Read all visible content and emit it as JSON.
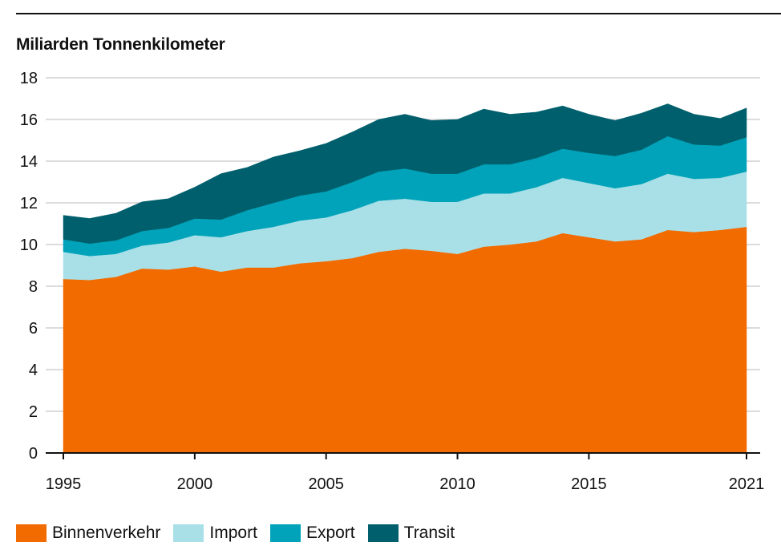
{
  "chart_data": {
    "type": "area",
    "stacked": true,
    "title": "",
    "ylabel": "Miliarden Tonnenkilometer",
    "xlabel": "",
    "x": [
      1995,
      1996,
      1997,
      1998,
      1999,
      2000,
      2001,
      2002,
      2003,
      2004,
      2005,
      2006,
      2007,
      2008,
      2009,
      2010,
      2011,
      2012,
      2013,
      2014,
      2015,
      2016,
      2017,
      2018,
      2019,
      2020,
      2021
    ],
    "xticks": [
      "1995",
      "2000",
      "2005",
      "2010",
      "2015",
      "2021"
    ],
    "xtick_values": [
      1995,
      2000,
      2005,
      2010,
      2015,
      2021
    ],
    "yticks": [
      "0",
      "2",
      "4",
      "6",
      "8",
      "10",
      "12",
      "14",
      "16",
      "18"
    ],
    "ylim": [
      0,
      18
    ],
    "grid": true,
    "legend_position": "bottom-left",
    "series": [
      {
        "name": "Binnenverkehr",
        "color": "#f26b00",
        "values": [
          8.35,
          8.3,
          8.45,
          8.85,
          8.8,
          8.95,
          8.7,
          8.9,
          8.9,
          9.1,
          9.2,
          9.35,
          9.65,
          9.8,
          9.7,
          9.55,
          9.9,
          10.0,
          10.15,
          10.55,
          10.35,
          10.15,
          10.25,
          10.7,
          10.6,
          10.7,
          10.85
        ]
      },
      {
        "name": "Import",
        "color": "#a9e0e8",
        "values": [
          1.3,
          1.15,
          1.1,
          1.1,
          1.3,
          1.5,
          1.65,
          1.75,
          1.95,
          2.05,
          2.1,
          2.3,
          2.45,
          2.4,
          2.35,
          2.5,
          2.55,
          2.45,
          2.6,
          2.65,
          2.6,
          2.55,
          2.65,
          2.7,
          2.55,
          2.5,
          2.65
        ]
      },
      {
        "name": "Export",
        "color": "#00a3b9",
        "values": [
          0.6,
          0.6,
          0.65,
          0.7,
          0.7,
          0.8,
          0.85,
          1.0,
          1.15,
          1.2,
          1.25,
          1.35,
          1.4,
          1.45,
          1.35,
          1.35,
          1.4,
          1.4,
          1.4,
          1.4,
          1.45,
          1.55,
          1.65,
          1.8,
          1.65,
          1.55,
          1.65
        ]
      },
      {
        "name": "Transit",
        "color": "#005f6c",
        "values": [
          1.15,
          1.2,
          1.3,
          1.4,
          1.4,
          1.5,
          2.2,
          2.05,
          2.2,
          2.15,
          2.3,
          2.4,
          2.5,
          2.6,
          2.55,
          2.6,
          2.65,
          2.4,
          2.2,
          2.05,
          1.85,
          1.7,
          1.75,
          1.55,
          1.45,
          1.3,
          1.4
        ]
      }
    ]
  }
}
